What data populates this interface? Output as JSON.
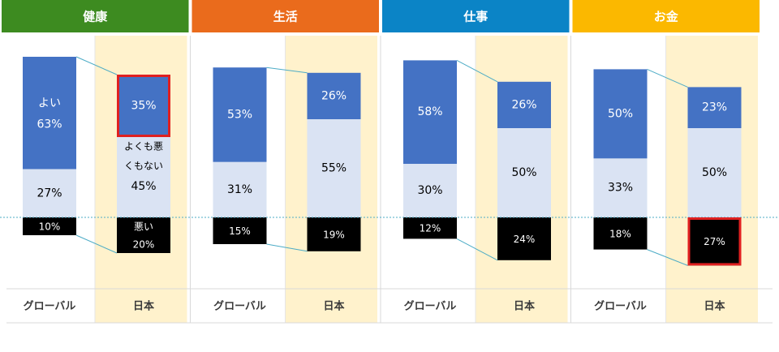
{
  "chart_data": {
    "type": "bar",
    "subtype": "stacked-100-waterfall",
    "groups": [
      {
        "title": "健康",
        "color": "#3d8b20",
        "categories": [
          "グローバル",
          "日本"
        ]
      },
      {
        "title": "生活",
        "color": "#ea6b1c",
        "categories": [
          "グローバル",
          "日本"
        ]
      },
      {
        "title": "仕事",
        "color": "#0b84c6",
        "categories": [
          "グローバル",
          "日本"
        ]
      },
      {
        "title": "お金",
        "color": "#fbb800",
        "categories": [
          "グローバル",
          "日本"
        ]
      }
    ],
    "series": [
      {
        "key": "good",
        "name": "よい",
        "color": "#4472c4",
        "text_color": "#ffffff",
        "values": [
          [
            63,
            35
          ],
          [
            53,
            26
          ],
          [
            58,
            26
          ],
          [
            50,
            23
          ]
        ]
      },
      {
        "key": "neutral",
        "name": "よくも悪くもない",
        "color": "#dae3f3",
        "text_color": "#000000",
        "values": [
          [
            27,
            45
          ],
          [
            31,
            55
          ],
          [
            30,
            50
          ],
          [
            33,
            50
          ]
        ]
      },
      {
        "key": "bad",
        "name": "悪い",
        "color": "#000000",
        "text_color": "#ffffff",
        "values": [
          [
            10,
            20
          ],
          [
            15,
            19
          ],
          [
            12,
            24
          ],
          [
            18,
            27
          ]
        ]
      }
    ],
    "inline_labels": {
      "good": "よい",
      "neutral_line1": "よくも悪",
      "neutral_line2": "くもない",
      "bad": "悪い"
    },
    "highlighted": [
      {
        "group": 0,
        "bar": 1,
        "series": "good"
      },
      {
        "group": 3,
        "bar": 1,
        "series": "bad"
      }
    ],
    "highlight_color": "#e02020",
    "japan_background": "#fff2cc",
    "connector_color": "#4dacc6",
    "baseline_color": "#4dacc6",
    "xlabel": "",
    "ylabel": ""
  }
}
